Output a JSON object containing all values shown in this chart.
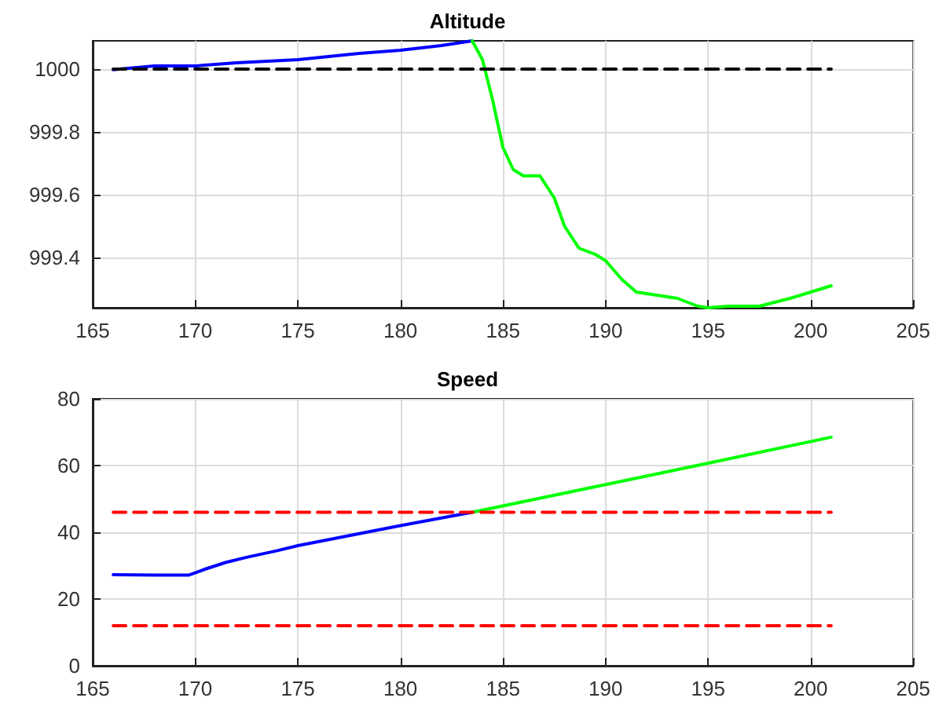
{
  "chart_data": [
    {
      "type": "line",
      "title": "Altitude",
      "xlim": [
        165,
        205
      ],
      "xticks": [
        165,
        170,
        175,
        180,
        185,
        190,
        195,
        200,
        205
      ],
      "ylim": [
        999.24,
        1000.09
      ],
      "yticks": [
        999.4,
        999.6,
        999.8,
        1000
      ],
      "grid": true,
      "series": [
        {
          "color": "#0000ff",
          "x": [
            166,
            168,
            170,
            172,
            175,
            178,
            180,
            182,
            183.5
          ],
          "values": [
            999.998,
            1000.01,
            1000.01,
            1000.02,
            1000.03,
            1000.05,
            1000.06,
            1000.075,
            1000.09
          ]
        },
        {
          "color": "#00ff00",
          "x": [
            183.5,
            184,
            184.5,
            185,
            185.5,
            186,
            186.8,
            187.5,
            188,
            188.7,
            189.5,
            190,
            190.8,
            191.5,
            192.5,
            193.5,
            194.5,
            195,
            196,
            197.5,
            199,
            201
          ],
          "values": [
            1000.09,
            1000.03,
            999.9,
            999.75,
            999.68,
            999.66,
            999.66,
            999.59,
            999.5,
            999.43,
            999.41,
            999.39,
            999.33,
            999.29,
            999.28,
            999.27,
            999.245,
            999.24,
            999.245,
            999.245,
            999.27,
            999.31
          ]
        },
        {
          "color": "#000000",
          "line_style": "dashed",
          "x": [
            166,
            201
          ],
          "values": [
            1000,
            1000
          ]
        }
      ]
    },
    {
      "type": "line",
      "title": "Speed",
      "xlim": [
        165,
        205
      ],
      "xticks": [
        165,
        170,
        175,
        180,
        185,
        190,
        195,
        200,
        205
      ],
      "ylim": [
        0,
        80
      ],
      "yticks": [
        0,
        20,
        40,
        60,
        80
      ],
      "grid": true,
      "series": [
        {
          "color": "#0000ff",
          "x": [
            166,
            168,
            169.7,
            170.5,
            171.5,
            172.5,
            174,
            175,
            177.5,
            180,
            182,
            183.5
          ],
          "values": [
            27.3,
            27.2,
            27.2,
            29,
            31,
            32.5,
            34.5,
            36,
            39,
            42,
            44.3,
            46
          ]
        },
        {
          "color": "#00ff00",
          "x": [
            183.5,
            190,
            195,
            201
          ],
          "values": [
            46,
            54.3,
            60.7,
            68.5
          ]
        },
        {
          "color": "#ff0000",
          "line_style": "dashed",
          "x": [
            166,
            201
          ],
          "values": [
            46,
            46
          ]
        },
        {
          "color": "#ff0000",
          "line_style": "dashed",
          "x": [
            166,
            201
          ],
          "values": [
            12,
            12
          ]
        }
      ]
    }
  ]
}
